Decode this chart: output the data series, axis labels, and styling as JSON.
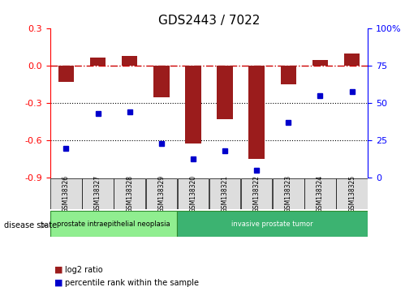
{
  "title": "GDS2443 / 7022",
  "samples": [
    "GSM138326",
    "GSM138327",
    "GSM138328",
    "GSM138329",
    "GSM138320",
    "GSM138321",
    "GSM138322",
    "GSM138323",
    "GSM138324",
    "GSM138325"
  ],
  "log2_ratio": [
    -0.13,
    0.07,
    0.08,
    -0.25,
    -0.62,
    -0.43,
    -0.75,
    -0.15,
    0.05,
    0.1
  ],
  "percentile": [
    20,
    43,
    44,
    23,
    13,
    18,
    5,
    37,
    55,
    58
  ],
  "ylim_left": [
    -0.9,
    0.3
  ],
  "ylim_right": [
    0,
    100
  ],
  "yticks_left": [
    0.3,
    0.0,
    -0.3,
    -0.6,
    -0.9
  ],
  "yticks_right": [
    100,
    75,
    50,
    25,
    0
  ],
  "bar_color": "#9B1C1C",
  "dot_color": "#0000CC",
  "hline_color": "#CC0000",
  "grid_color": "#000000",
  "bg_color": "#FFFFFF",
  "disease_groups": [
    {
      "label": "prostate intraepithelial neoplasia",
      "indices": [
        0,
        1,
        2,
        3
      ],
      "color": "#90EE90"
    },
    {
      "label": "invasive prostate tumor",
      "indices": [
        4,
        5,
        6,
        7,
        8,
        9
      ],
      "color": "#32CD32"
    }
  ],
  "disease_state_label": "disease state",
  "legend_log2": "log2 ratio",
  "legend_pct": "percentile rank within the sample",
  "bar_width": 0.5
}
